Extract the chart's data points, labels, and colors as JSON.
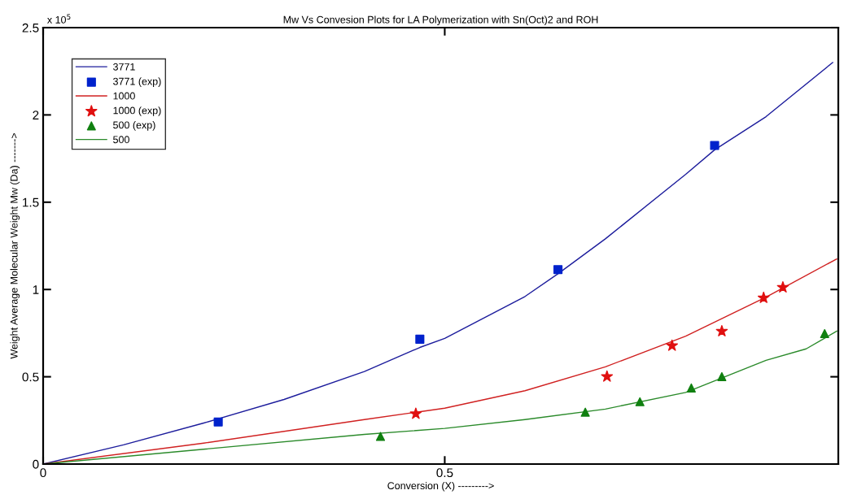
{
  "chart_data": {
    "type": "line",
    "title": "Mw Vs Convesion Plots for LA Polymerization with Sn(Oct)2 and ROH",
    "xlabel": "Conversion (X) --------->",
    "ylabel": "Weight Average Molecular Weight Mw (Da) ------->",
    "annotations": [
      "x 10$^{5}$"
    ],
    "xlim": [
      0,
      0.99
    ],
    "xticks": [
      0,
      0.5
    ],
    "ylim": [
      0,
      2.5
    ],
    "yticks": [
      0,
      0.5,
      1,
      1.5,
      2,
      2.5
    ],
    "grid": false,
    "legend": "top left",
    "series": [
      {
        "name": "3771",
        "color": "#1c1c9c",
        "marker": "none",
        "x": [
          0,
          0.1,
          0.2,
          0.3,
          0.4,
          0.469,
          0.5,
          0.6,
          0.641,
          0.7,
          0.8,
          0.836,
          0.9,
          0.983
        ],
        "values": [
          0,
          0.11,
          0.235,
          0.37,
          0.53,
          0.668,
          0.72,
          0.96,
          1.09,
          1.29,
          1.66,
          1.8,
          1.99,
          2.3
        ]
      },
      {
        "name": "3771 (exp)",
        "type": "scatter",
        "color": "#0022cc",
        "marker": "square",
        "x": [
          0.218,
          0.469,
          0.641,
          0.836
        ],
        "values": [
          0.241,
          0.715,
          1.114,
          1.825
        ]
      },
      {
        "name": "1000",
        "color": "#d02020",
        "marker": "none",
        "x": [
          0,
          0.2,
          0.4,
          0.5,
          0.6,
          0.7,
          0.8,
          0.9,
          0.988
        ],
        "values": [
          0,
          0.12,
          0.255,
          0.32,
          0.42,
          0.557,
          0.733,
          0.956,
          1.175
        ]
      },
      {
        "name": "1000 (exp)",
        "type": "scatter",
        "color": "#e01010",
        "marker": "star",
        "x": [
          0.464,
          0.702,
          0.783,
          0.845,
          0.897,
          0.921
        ],
        "values": [
          0.288,
          0.501,
          0.678,
          0.761,
          0.952,
          1.012
        ]
      },
      {
        "name": "500 (exp)",
        "type": "scatter",
        "color": "#108010",
        "marker": "triangle",
        "x": [
          0.42,
          0.675,
          0.743,
          0.807,
          0.845,
          0.973
        ],
        "values": [
          0.158,
          0.297,
          0.357,
          0.436,
          0.501,
          0.747
        ]
      },
      {
        "name": "500",
        "color": "#2a8a2a",
        "marker": "none",
        "x": [
          0,
          0.2,
          0.4,
          0.5,
          0.6,
          0.7,
          0.8,
          0.9,
          0.95,
          0.988
        ],
        "values": [
          0,
          0.085,
          0.17,
          0.204,
          0.255,
          0.315,
          0.41,
          0.594,
          0.66,
          0.761
        ]
      }
    ]
  }
}
